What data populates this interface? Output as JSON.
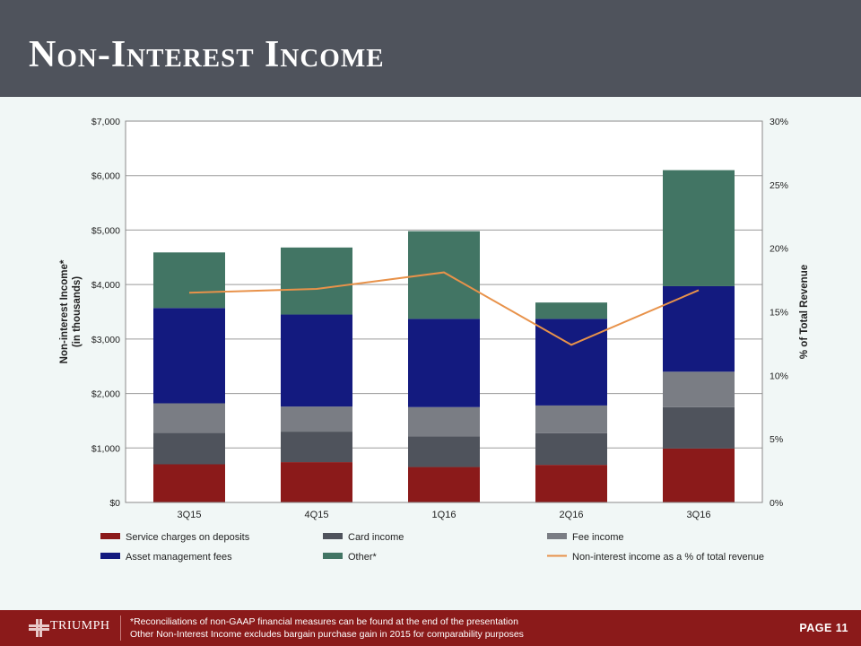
{
  "title": "Non-Interest Income",
  "footer": {
    "logo_text": "TRIUMPH",
    "note1": "*Reconciliations of non-GAAP financial measures can be found at the end of the presentation",
    "note2": " Other Non-Interest Income excludes bargain purchase gain in 2015 for comparability purposes",
    "page_label": "PAGE 11"
  },
  "colors": {
    "header": "#4f535c",
    "footer": "#8b1a1a",
    "service": "#8b1a1a",
    "card": "#4f535c",
    "fee": "#7a7d84",
    "asset": "#131a7f",
    "other": "#427564",
    "line": "#e8924a"
  },
  "chart_data": {
    "type": "bar",
    "stacked": true,
    "categories": [
      "3Q15",
      "4Q15",
      "1Q16",
      "2Q16",
      "3Q16"
    ],
    "series": [
      {
        "name": "Service charges on deposits",
        "values": [
          700,
          740,
          650,
          690,
          990
        ]
      },
      {
        "name": "Card income",
        "values": [
          580,
          560,
          560,
          580,
          760
        ]
      },
      {
        "name": "Fee income",
        "values": [
          540,
          460,
          540,
          510,
          650
        ]
      },
      {
        "name": "Asset management fees",
        "values": [
          1750,
          1690,
          1620,
          1590,
          1570
        ]
      },
      {
        "name": "Other*",
        "values": [
          1020,
          1230,
          1610,
          300,
          2130
        ]
      }
    ],
    "line_series": {
      "name": "Non-interest income as a % of total revenue",
      "axis": "right",
      "values": [
        16.5,
        16.8,
        18.1,
        12.4,
        16.7
      ]
    },
    "ylabel": "Non-interest Income*\n(in thousands)",
    "ylabel_lines": [
      "Non-interest Income*",
      "(in thousands)"
    ],
    "y2label": "% of Total Revenue",
    "ylim": [
      0,
      7000
    ],
    "y2lim": [
      0,
      30
    ],
    "yticks": [
      "$0",
      "$1,000",
      "$2,000",
      "$3,000",
      "$4,000",
      "$5,000",
      "$6,000",
      "$7,000"
    ],
    "y2ticks": [
      "0%",
      "5%",
      "10%",
      "15%",
      "20%",
      "25%",
      "30%"
    ],
    "grid": true,
    "legend": "bottom"
  }
}
